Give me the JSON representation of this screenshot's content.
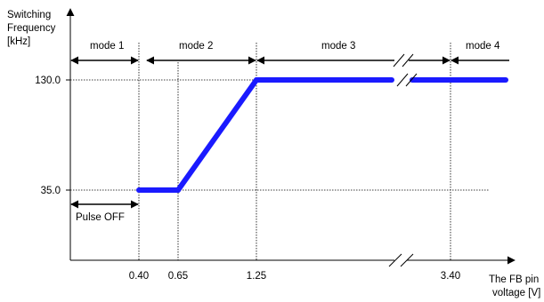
{
  "chart_data": {
    "type": "line",
    "ylabel_lines": [
      "Switching",
      "Frequency",
      "[kHz]"
    ],
    "xlabel_lines": [
      "The FB pin",
      "voltage [V]"
    ],
    "x_ticks": [
      "0.40",
      "0.65",
      "1.25",
      "3.40"
    ],
    "y_ticks": [
      "130.0",
      "35.0"
    ],
    "series": [
      {
        "points": [
          {
            "x": 0.4,
            "y": 35.0
          },
          {
            "x": 0.65,
            "y": 35.0
          },
          {
            "x": 1.25,
            "y": 130.0
          },
          {
            "x": 3.4,
            "y": 130.0
          }
        ]
      }
    ],
    "modes": [
      {
        "label": "mode 1",
        "from": "origin",
        "to": 0.4
      },
      {
        "label": "mode 2",
        "from": 0.4,
        "to": 1.25
      },
      {
        "label": "mode 3",
        "from": 1.25,
        "to": 3.4
      },
      {
        "label": "mode 4",
        "from": 3.4,
        "to": "end"
      }
    ],
    "annotations": [
      {
        "label": "Pulse OFF",
        "from": "origin",
        "to": 0.4,
        "at_y": 35.0
      }
    ],
    "axis_break": true,
    "grid": false,
    "line_color": "#1a1aff"
  }
}
